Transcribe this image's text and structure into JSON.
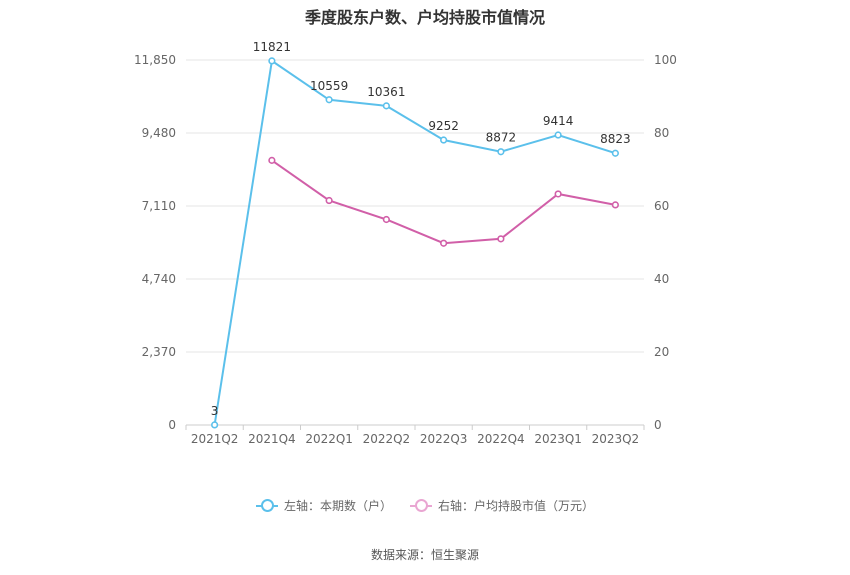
{
  "chart_data": {
    "type": "line",
    "title": "季度股东户数、户均持股市值情况",
    "categories": [
      "2021Q2",
      "2021Q4",
      "2022Q1",
      "2022Q2",
      "2022Q3",
      "2022Q4",
      "2023Q1",
      "2023Q2"
    ],
    "left_axis": {
      "ticks": [
        "0",
        "2,370",
        "4,740",
        "7,110",
        "9,480",
        "11,850"
      ],
      "ylim": [
        0,
        11850
      ]
    },
    "right_axis": {
      "ticks": [
        "0",
        "20",
        "40",
        "60",
        "80",
        "100"
      ],
      "ylim": [
        0,
        100
      ]
    },
    "series": [
      {
        "name": "左轴：本期数（户）",
        "axis": "left",
        "color": "#5bc0eb",
        "values": [
          3,
          11821,
          10559,
          10361,
          9252,
          8872,
          9414,
          8823
        ],
        "labels": [
          "3",
          "11821",
          "10559",
          "10361",
          "9252",
          "8872",
          "9414",
          "8823"
        ]
      },
      {
        "name": "右轴：户均持股市值（万元）",
        "axis": "right",
        "color": "#d15fa8",
        "values": [
          null,
          72.5,
          61.5,
          56.3,
          49.8,
          51.0,
          63.3,
          60.3
        ]
      }
    ],
    "grid": true,
    "legend_position": "bottom"
  },
  "source": "数据来源：恒生聚源"
}
